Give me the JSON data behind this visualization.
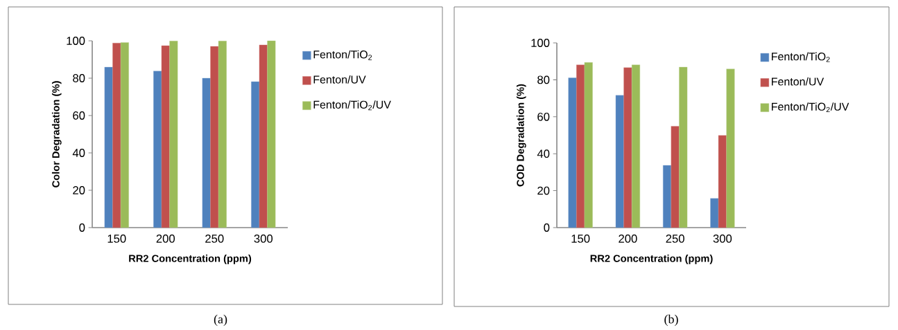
{
  "chart_data": [
    {
      "type": "bar",
      "xlabel": "RR2 Concentration (ppm)",
      "ylabel": "Color Degradation (%)",
      "categories": [
        "150",
        "200",
        "250",
        "300"
      ],
      "series": [
        {
          "name": "Fenton/TiO$_{2}$",
          "color": "#4f81bd",
          "values": [
            85.9,
            83.8,
            80.0,
            78.1
          ]
        },
        {
          "name": "Fenton/UV",
          "color": "#c0504d",
          "values": [
            98.8,
            97.4,
            97.0,
            97.8
          ]
        },
        {
          "name": "Fenton/TiO$_{2}$/UV",
          "color": "#9bbb59",
          "values": [
            99.1,
            99.9,
            99.9,
            100
          ]
        }
      ],
      "ylim": [
        0,
        100
      ],
      "yticks": [
        0,
        20,
        40,
        60,
        80,
        100
      ],
      "legend": "right",
      "annotations": [
        "(a)"
      ]
    },
    {
      "type": "bar",
      "xlabel": "RR2 Concentration (ppm)",
      "ylabel": "COD Degradation (%)",
      "categories": [
        "150",
        "200",
        "250",
        "300"
      ],
      "series": [
        {
          "name": "Fenton/TiO$_{2}$",
          "color": "#4f81bd",
          "values": [
            81.1,
            71.6,
            33.7,
            15.8
          ]
        },
        {
          "name": "Fenton/UV",
          "color": "#c0504d",
          "values": [
            88.1,
            86.6,
            54.9,
            49.9
          ]
        },
        {
          "name": "Fenton/TiO$_{2}$/UV",
          "color": "#9bbb59",
          "values": [
            89.4,
            88.1,
            86.9,
            85.9
          ]
        }
      ],
      "ylim": [
        0,
        100
      ],
      "yticks": [
        0,
        20,
        40,
        60,
        80,
        100
      ],
      "legend": "right",
      "annotations": [
        "(b)"
      ]
    }
  ]
}
